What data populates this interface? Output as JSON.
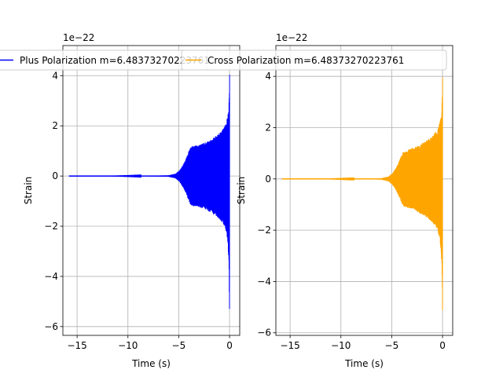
{
  "chart_data": [
    {
      "type": "line",
      "xlabel": "Time (s)",
      "ylabel": "Strain",
      "offset_text": "1e−22",
      "xlim": [
        -16.4,
        1.0
      ],
      "ylim": [
        -6.35,
        5.2
      ],
      "xticks": [
        -15,
        -10,
        -5,
        0
      ],
      "xtick_labels": [
        "−15",
        "−10",
        "−5",
        "0"
      ],
      "yticks": [
        -6,
        -4,
        -2,
        0,
        2,
        4
      ],
      "ytick_labels": [
        "−6",
        "−4",
        "−2",
        "0",
        "2",
        "4"
      ],
      "grid": true,
      "legend_position": "top",
      "series": [
        {
          "name": "Plus Polarization m=6.48373270223761",
          "color": "#0000ff",
          "x": [
            -15.8,
            -12,
            -8,
            -6,
            -5.3,
            -4.9,
            -4.6,
            -4.3,
            -4.1,
            -3.9,
            -3.7,
            -3.5,
            -3.3,
            -3.0,
            -2.5,
            -2.0,
            -1.5,
            -1.0,
            -0.7,
            -0.5,
            -0.3,
            -0.15,
            -0.05,
            0.0
          ],
          "upper": [
            0.0,
            0.0,
            0.01,
            0.03,
            0.1,
            0.25,
            0.45,
            0.7,
            0.95,
            1.15,
            1.23,
            1.26,
            1.27,
            1.3,
            1.38,
            1.48,
            1.62,
            1.78,
            1.92,
            2.05,
            2.3,
            2.6,
            3.2,
            4.5
          ],
          "lower": [
            0.0,
            0.0,
            -0.01,
            -0.03,
            -0.1,
            -0.25,
            -0.45,
            -0.7,
            -0.95,
            -1.15,
            -1.23,
            -1.26,
            -1.27,
            -1.3,
            -1.38,
            -1.48,
            -1.62,
            -1.8,
            -1.95,
            -2.1,
            -2.4,
            -2.9,
            -3.8,
            -5.8
          ]
        }
      ]
    },
    {
      "type": "line",
      "xlabel": "Time (s)",
      "ylabel": "Strain",
      "offset_text": "1e−22",
      "xlim": [
        -16.4,
        1.0
      ],
      "ylim": [
        -6.1,
        5.2
      ],
      "xticks": [
        -15,
        -10,
        -5,
        0
      ],
      "xtick_labels": [
        "−15",
        "−10",
        "−5",
        "0"
      ],
      "yticks": [
        -6,
        -4,
        -2,
        0,
        2,
        4
      ],
      "ytick_labels": [
        "−6",
        "−4",
        "−2",
        "0",
        "2",
        "4"
      ],
      "grid": true,
      "legend_position": "top",
      "series": [
        {
          "name": "Cross Polarization m=6.48373270223761",
          "color": "#ffa500",
          "x": [
            -15.8,
            -12,
            -8,
            -6,
            -5.3,
            -4.9,
            -4.6,
            -4.3,
            -4.1,
            -3.9,
            -3.7,
            -3.5,
            -3.3,
            -3.0,
            -2.5,
            -2.0,
            -1.5,
            -1.0,
            -0.7,
            -0.5,
            -0.3,
            -0.15,
            -0.05,
            0.0
          ],
          "upper": [
            0.0,
            0.0,
            0.01,
            0.03,
            0.1,
            0.25,
            0.45,
            0.7,
            0.9,
            1.08,
            1.15,
            1.18,
            1.2,
            1.25,
            1.33,
            1.45,
            1.6,
            1.76,
            1.9,
            2.03,
            2.3,
            2.6,
            3.2,
            4.4
          ],
          "lower": [
            0.0,
            0.0,
            -0.01,
            -0.03,
            -0.1,
            -0.25,
            -0.45,
            -0.7,
            -0.9,
            -1.08,
            -1.15,
            -1.18,
            -1.2,
            -1.25,
            -1.33,
            -1.45,
            -1.6,
            -1.78,
            -1.93,
            -2.1,
            -2.4,
            -2.9,
            -3.8,
            -5.6
          ]
        }
      ]
    }
  ]
}
